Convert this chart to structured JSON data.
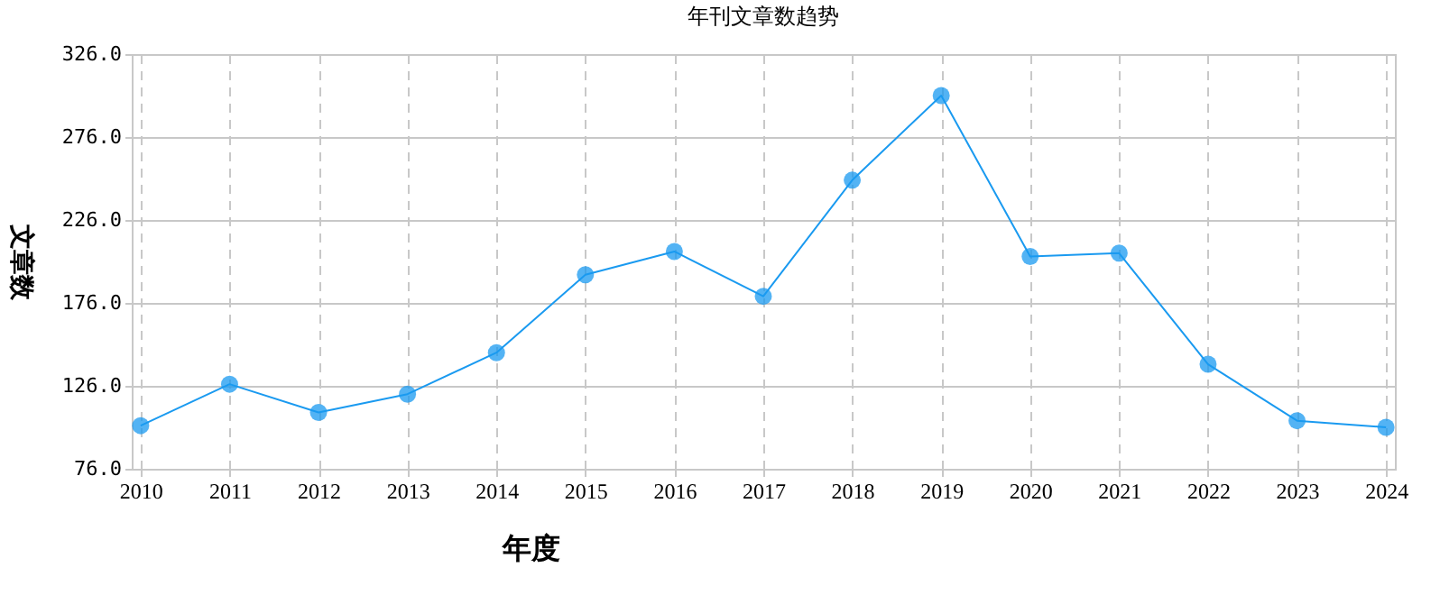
{
  "chart_data": {
    "type": "line",
    "title": "年刊文章数趋势",
    "xlabel": "年度",
    "ylabel": "文章数",
    "categories": [
      "2010",
      "2011",
      "2012",
      "2013",
      "2014",
      "2015",
      "2016",
      "2017",
      "2018",
      "2019",
      "2020",
      "2021",
      "2022",
      "2023",
      "2024"
    ],
    "series": [
      {
        "color": "#1a9af0",
        "values": [
          102,
          127,
          110,
          121,
          146,
          193,
          207,
          180,
          250,
          301,
          204,
          206,
          139,
          105,
          101
        ]
      }
    ],
    "ylim": [
      76,
      326
    ],
    "yticks": [
      {
        "value": 76,
        "label": "76.0"
      },
      {
        "value": 126,
        "label": "126.0"
      },
      {
        "value": 176,
        "label": "176.0"
      },
      {
        "value": 226,
        "label": "226.0"
      },
      {
        "value": 276,
        "label": "276.0"
      },
      {
        "value": 326,
        "label": "326.0"
      }
    ],
    "grid": true,
    "marker": "circle",
    "line_style": "solid"
  }
}
